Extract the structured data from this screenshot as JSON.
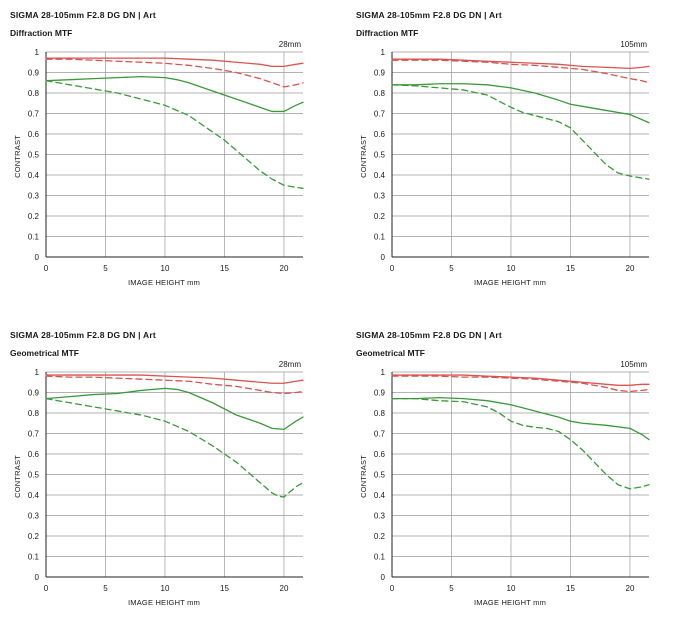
{
  "chart_data": [
    {
      "type": "line",
      "title": "SIGMA 28-105mm F2.8 DG DN | Art",
      "subtitle": "Diffraction MTF",
      "focal_length": "28mm",
      "xlabel": "IMAGE HEIGHT   mm",
      "ylabel": "CONTRAST",
      "xlim": [
        0,
        21.6
      ],
      "ylim": [
        0,
        1
      ],
      "x_ticks": [
        "0",
        "5",
        "10",
        "15",
        "20"
      ],
      "y_ticks": [
        "0",
        "0.1",
        "0.2",
        "0.3",
        "0.4",
        "0.5",
        "0.6",
        "0.7",
        "0.8",
        "0.9",
        "1"
      ],
      "grid": true,
      "series": [
        {
          "color": "#d9534f",
          "style": "solid",
          "x": [
            0,
            2,
            4,
            6,
            8,
            10,
            12,
            14,
            16,
            18,
            19,
            20,
            21,
            21.6
          ],
          "y": [
            0.97,
            0.97,
            0.97,
            0.97,
            0.97,
            0.97,
            0.965,
            0.96,
            0.95,
            0.94,
            0.93,
            0.93,
            0.94,
            0.945
          ]
        },
        {
          "color": "#d9534f",
          "style": "dashed",
          "x": [
            0,
            2,
            4,
            6,
            8,
            10,
            12,
            14,
            16,
            18,
            19,
            20,
            21,
            21.6
          ],
          "y": [
            0.965,
            0.965,
            0.96,
            0.955,
            0.95,
            0.945,
            0.935,
            0.92,
            0.9,
            0.87,
            0.85,
            0.83,
            0.84,
            0.85
          ]
        },
        {
          "color": "#3a9a3a",
          "style": "solid",
          "x": [
            0,
            2,
            4,
            6,
            8,
            10,
            11,
            12,
            14,
            16,
            18,
            19,
            20,
            21,
            21.6
          ],
          "y": [
            0.86,
            0.865,
            0.87,
            0.875,
            0.88,
            0.875,
            0.865,
            0.85,
            0.81,
            0.77,
            0.73,
            0.71,
            0.71,
            0.74,
            0.755
          ]
        },
        {
          "color": "#3a9a3a",
          "style": "dashed",
          "x": [
            0,
            2,
            4,
            6,
            8,
            10,
            12,
            14,
            15,
            16,
            17,
            18,
            19,
            20,
            21,
            21.6
          ],
          "y": [
            0.86,
            0.84,
            0.82,
            0.8,
            0.77,
            0.74,
            0.69,
            0.61,
            0.57,
            0.52,
            0.47,
            0.42,
            0.38,
            0.35,
            0.34,
            0.335
          ]
        }
      ]
    },
    {
      "type": "line",
      "title": "SIGMA 28-105mm F2.8 DG DN | Art",
      "subtitle": "Diffraction MTF",
      "focal_length": "105mm",
      "xlabel": "IMAGE HEIGHT   mm",
      "ylabel": "CONTRAST",
      "xlim": [
        0,
        21.6
      ],
      "ylim": [
        0,
        1
      ],
      "x_ticks": [
        "0",
        "5",
        "10",
        "15",
        "20"
      ],
      "y_ticks": [
        "0",
        "0.1",
        "0.2",
        "0.3",
        "0.4",
        "0.5",
        "0.6",
        "0.7",
        "0.8",
        "0.9",
        "1"
      ],
      "grid": true,
      "series": [
        {
          "color": "#d9534f",
          "style": "solid",
          "x": [
            0,
            2,
            4,
            6,
            8,
            10,
            12,
            14,
            16,
            18,
            20,
            21,
            21.6
          ],
          "y": [
            0.965,
            0.965,
            0.965,
            0.96,
            0.955,
            0.95,
            0.945,
            0.94,
            0.93,
            0.925,
            0.92,
            0.925,
            0.93
          ]
        },
        {
          "color": "#d9534f",
          "style": "dashed",
          "x": [
            0,
            2,
            4,
            6,
            8,
            10,
            12,
            14,
            16,
            18,
            20,
            21,
            21.6
          ],
          "y": [
            0.96,
            0.96,
            0.96,
            0.955,
            0.95,
            0.94,
            0.935,
            0.925,
            0.915,
            0.895,
            0.87,
            0.86,
            0.85
          ]
        },
        {
          "color": "#3a9a3a",
          "style": "solid",
          "x": [
            0,
            2,
            4,
            6,
            8,
            10,
            12,
            14,
            15,
            16,
            18,
            20,
            21,
            21.6
          ],
          "y": [
            0.84,
            0.84,
            0.845,
            0.845,
            0.84,
            0.825,
            0.8,
            0.765,
            0.745,
            0.735,
            0.715,
            0.695,
            0.67,
            0.655
          ]
        },
        {
          "color": "#3a9a3a",
          "style": "dashed",
          "x": [
            0,
            2,
            4,
            6,
            8,
            9,
            10,
            11,
            12,
            13,
            14,
            15,
            16,
            17,
            18,
            19,
            20,
            21,
            21.6
          ],
          "y": [
            0.84,
            0.835,
            0.825,
            0.815,
            0.79,
            0.76,
            0.73,
            0.705,
            0.69,
            0.675,
            0.66,
            0.63,
            0.57,
            0.51,
            0.45,
            0.41,
            0.395,
            0.385,
            0.38
          ]
        }
      ]
    },
    {
      "type": "line",
      "title": "SIGMA 28-105mm F2.8 DG DN | Art",
      "subtitle": "Geometrical MTF",
      "focal_length": "28mm",
      "xlabel": "IMAGE HEIGHT   mm",
      "ylabel": "CONTRAST",
      "xlim": [
        0,
        21.6
      ],
      "ylim": [
        0,
        1
      ],
      "x_ticks": [
        "0",
        "5",
        "10",
        "15",
        "20"
      ],
      "y_ticks": [
        "0",
        "0.1",
        "0.2",
        "0.3",
        "0.4",
        "0.5",
        "0.6",
        "0.7",
        "0.8",
        "0.9",
        "1"
      ],
      "grid": true,
      "series": [
        {
          "color": "#d9534f",
          "style": "solid",
          "x": [
            0,
            2,
            4,
            6,
            8,
            10,
            12,
            14,
            16,
            18,
            19,
            20,
            21,
            21.6
          ],
          "y": [
            0.985,
            0.985,
            0.985,
            0.985,
            0.985,
            0.98,
            0.975,
            0.97,
            0.96,
            0.95,
            0.945,
            0.945,
            0.955,
            0.96
          ]
        },
        {
          "color": "#d9534f",
          "style": "dashed",
          "x": [
            0,
            2,
            4,
            6,
            8,
            10,
            12,
            14,
            16,
            18,
            19,
            20,
            21,
            21.6
          ],
          "y": [
            0.98,
            0.975,
            0.975,
            0.97,
            0.965,
            0.96,
            0.955,
            0.94,
            0.93,
            0.91,
            0.9,
            0.895,
            0.9,
            0.905
          ]
        },
        {
          "color": "#3a9a3a",
          "style": "solid",
          "x": [
            0,
            2,
            4,
            6,
            8,
            10,
            11,
            12,
            14,
            16,
            18,
            19,
            20,
            21,
            21.6
          ],
          "y": [
            0.87,
            0.88,
            0.89,
            0.895,
            0.91,
            0.92,
            0.915,
            0.9,
            0.85,
            0.79,
            0.75,
            0.725,
            0.72,
            0.76,
            0.78
          ]
        },
        {
          "color": "#3a9a3a",
          "style": "dashed",
          "x": [
            0,
            2,
            4,
            6,
            8,
            10,
            12,
            14,
            15,
            16,
            17,
            18,
            19,
            19.5,
            20,
            21,
            21.6
          ],
          "y": [
            0.87,
            0.85,
            0.83,
            0.81,
            0.79,
            0.76,
            0.71,
            0.64,
            0.6,
            0.56,
            0.51,
            0.46,
            0.41,
            0.395,
            0.39,
            0.44,
            0.46
          ]
        }
      ]
    },
    {
      "type": "line",
      "title": "SIGMA 28-105mm F2.8 DG DN | Art",
      "subtitle": "Geometrical MTF",
      "focal_length": "105mm",
      "xlabel": "IMAGE HEIGHT   mm",
      "ylabel": "CONTRAST",
      "xlim": [
        0,
        21.6
      ],
      "ylim": [
        0,
        1
      ],
      "x_ticks": [
        "0",
        "5",
        "10",
        "15",
        "20"
      ],
      "y_ticks": [
        "0",
        "0.1",
        "0.2",
        "0.3",
        "0.4",
        "0.5",
        "0.6",
        "0.7",
        "0.8",
        "0.9",
        "1"
      ],
      "grid": true,
      "series": [
        {
          "color": "#d9534f",
          "style": "solid",
          "x": [
            0,
            2,
            4,
            6,
            8,
            10,
            12,
            14,
            16,
            18,
            19,
            20,
            21,
            21.6
          ],
          "y": [
            0.985,
            0.985,
            0.985,
            0.985,
            0.98,
            0.975,
            0.97,
            0.96,
            0.95,
            0.94,
            0.935,
            0.935,
            0.94,
            0.94
          ]
        },
        {
          "color": "#d9534f",
          "style": "dashed",
          "x": [
            0,
            2,
            4,
            6,
            8,
            10,
            12,
            14,
            16,
            18,
            19,
            20,
            21,
            21.6
          ],
          "y": [
            0.98,
            0.98,
            0.98,
            0.975,
            0.975,
            0.97,
            0.965,
            0.955,
            0.945,
            0.925,
            0.91,
            0.905,
            0.91,
            0.915
          ]
        },
        {
          "color": "#3a9a3a",
          "style": "solid",
          "x": [
            0,
            2,
            4,
            6,
            8,
            10,
            12,
            14,
            15,
            16,
            18,
            20,
            21,
            21.6
          ],
          "y": [
            0.87,
            0.87,
            0.875,
            0.87,
            0.86,
            0.84,
            0.81,
            0.78,
            0.76,
            0.75,
            0.74,
            0.725,
            0.695,
            0.67
          ]
        },
        {
          "color": "#3a9a3a",
          "style": "dashed",
          "x": [
            0,
            2,
            4,
            6,
            8,
            9,
            10,
            11,
            12,
            13,
            14,
            15,
            16,
            17,
            18,
            19,
            20,
            21,
            21.6
          ],
          "y": [
            0.87,
            0.87,
            0.86,
            0.855,
            0.83,
            0.8,
            0.76,
            0.74,
            0.73,
            0.725,
            0.71,
            0.67,
            0.62,
            0.56,
            0.5,
            0.45,
            0.43,
            0.44,
            0.45
          ]
        }
      ]
    }
  ]
}
